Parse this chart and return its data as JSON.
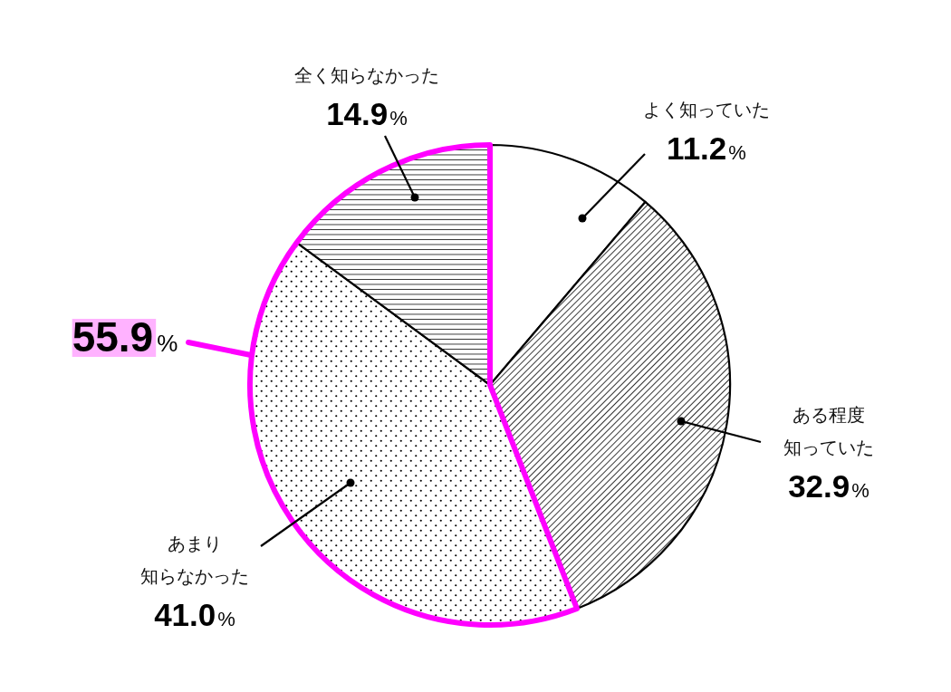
{
  "chart_data": {
    "type": "pie",
    "categories": [
      "よく知っていた",
      "ある程度知っていた",
      "あまり知らなかった",
      "全く知らなかった"
    ],
    "values": [
      11.2,
      32.9,
      41.0,
      14.9
    ],
    "value_labels": [
      "11.2%",
      "32.9%",
      "41.0%",
      "14.9%"
    ],
    "colors": [
      "#ffffff",
      "#000000",
      "#000000",
      "#000000"
    ],
    "annotations": [
      "55.9%"
    ]
  }
}
